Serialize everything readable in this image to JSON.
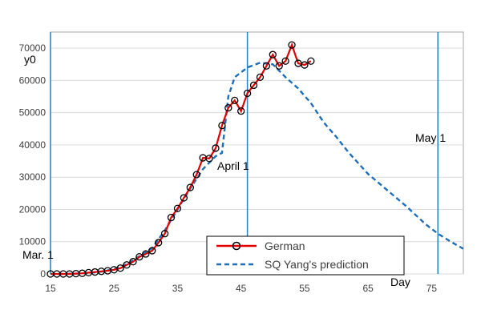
{
  "chart_data": {
    "type": "line",
    "ylabel": "y0",
    "xlim": [
      15,
      80
    ],
    "ylim": [
      0,
      75000
    ],
    "x_ticks": [
      "15",
      "25",
      "35",
      "45",
      "55",
      "65",
      "75"
    ],
    "y_ticks": [
      "0",
      "10000",
      "20000",
      "30000",
      "40000",
      "50000",
      "60000",
      "70000"
    ],
    "grid": "horizontal",
    "legend_position": "bottom-center",
    "annotations": [
      {
        "id": "mar1",
        "text": "Mar. 1",
        "x": 15
      },
      {
        "id": "april1",
        "text": "April 1",
        "x": 46
      },
      {
        "id": "may1",
        "text": "May 1",
        "x": 76
      },
      {
        "id": "day",
        "text": "Day"
      }
    ],
    "vlines": [
      15,
      46,
      76
    ],
    "series": [
      {
        "name": "German",
        "style": "solid-markers",
        "color": "#e00000",
        "marker_color": "#000000",
        "x": [
          15,
          16,
          17,
          18,
          19,
          20,
          21,
          22,
          23,
          24,
          25,
          26,
          27,
          28,
          29,
          30,
          31,
          32,
          33,
          34,
          35,
          36,
          37,
          38,
          39,
          40,
          41,
          42,
          43,
          44,
          45,
          46,
          47,
          48,
          49,
          50,
          51,
          52,
          53,
          54,
          55,
          56
        ],
        "y": [
          0,
          0,
          0,
          0,
          100,
          200,
          400,
          600,
          800,
          1000,
          1300,
          1800,
          2800,
          3800,
          5300,
          6200,
          7200,
          9700,
          12500,
          17500,
          20300,
          23600,
          26800,
          30800,
          36000,
          35800,
          39000,
          46000,
          51500,
          53800,
          50500,
          56000,
          58500,
          61000,
          64500,
          68000,
          64500,
          66000,
          71000,
          65300,
          64800,
          66000
        ]
      },
      {
        "name": "SQ Yang's prediction",
        "style": "dashed",
        "color": "#1f6fb8",
        "x": [
          15,
          17,
          19,
          21,
          23,
          25,
          27,
          29,
          31,
          33,
          35,
          37,
          39,
          41,
          42,
          43,
          44,
          46,
          48,
          50,
          52,
          54,
          56,
          58,
          60,
          62,
          65,
          68,
          71,
          74,
          76,
          78,
          80
        ],
        "y": [
          0,
          0,
          100,
          300,
          700,
          1500,
          3000,
          5500,
          8000,
          13500,
          20000,
          26500,
          32500,
          36500,
          37500,
          55000,
          61000,
          64000,
          65500,
          65000,
          61000,
          57500,
          53000,
          47000,
          42500,
          37500,
          31000,
          26000,
          21000,
          15500,
          12500,
          10000,
          7800
        ]
      }
    ]
  },
  "colors": {
    "german_line": "#e00000",
    "prediction_line": "#1f6fb8",
    "vline": "#2e86c1",
    "grid": "#d9d9d9",
    "axis": "#a6a6a6"
  }
}
